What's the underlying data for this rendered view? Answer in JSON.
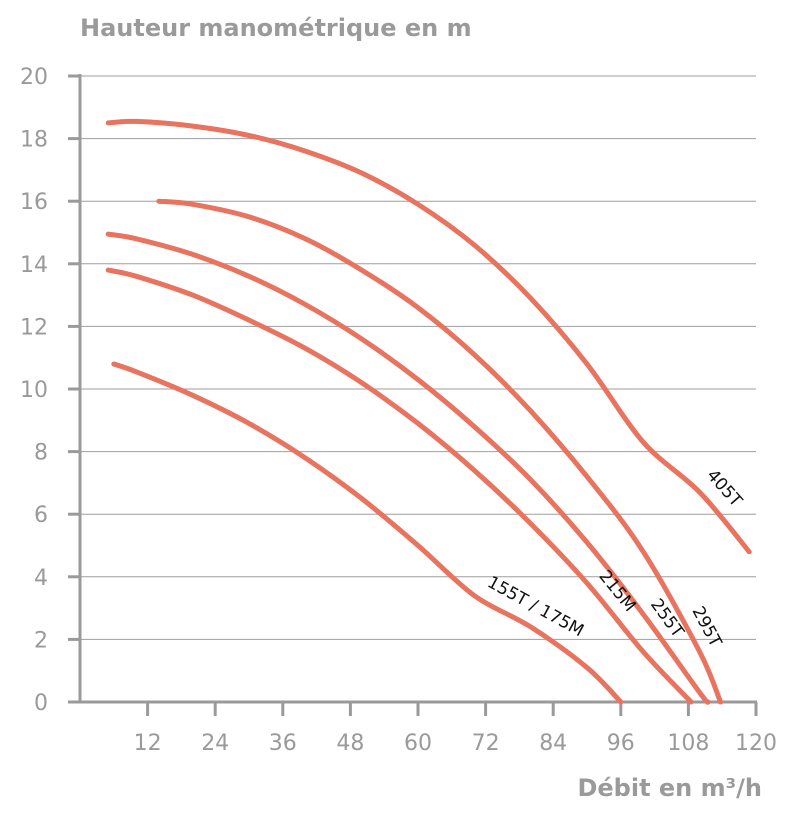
{
  "chart_data": {
    "type": "line",
    "title": "",
    "ylabel": "Hauteur manométrique en m",
    "xlabel": "Débit en m³/h",
    "xlim": [
      0,
      120
    ],
    "ylim": [
      0,
      20
    ],
    "xticks": [
      12,
      24,
      36,
      48,
      60,
      72,
      84,
      96,
      108,
      120
    ],
    "yticks": [
      0,
      2,
      4,
      6,
      8,
      10,
      12,
      14,
      16,
      18,
      20
    ],
    "grid": "horizontal",
    "colors": {
      "curve": "#e8735e",
      "grid": "#9e9e9e",
      "axis": "#9a9a9a",
      "label": "#111111"
    },
    "series": [
      {
        "name": "405T",
        "x": [
          5,
          10,
          20,
          30,
          40,
          50,
          60,
          70,
          80,
          90,
          100,
          110,
          118.8
        ],
        "y": [
          18.5,
          18.55,
          18.4,
          18.1,
          17.6,
          16.9,
          15.9,
          14.6,
          12.9,
          10.8,
          8.3,
          6.7,
          4.8
        ]
      },
      {
        "name": "295T",
        "x": [
          14,
          20,
          30,
          40,
          50,
          60,
          70,
          80,
          90,
          100,
          110,
          113.7
        ],
        "y": [
          16.0,
          15.9,
          15.5,
          14.8,
          13.8,
          12.6,
          11.1,
          9.3,
          7.2,
          4.8,
          1.6,
          0
        ]
      },
      {
        "name": "255T",
        "x": [
          5,
          10,
          20,
          30,
          40,
          50,
          60,
          70,
          80,
          90,
          100,
          110,
          111.5
        ],
        "y": [
          14.95,
          14.8,
          14.3,
          13.6,
          12.7,
          11.6,
          10.3,
          8.8,
          7.1,
          5.1,
          2.8,
          0.3,
          0
        ]
      },
      {
        "name": "215M",
        "x": [
          5,
          10,
          20,
          30,
          40,
          50,
          60,
          70,
          80,
          90,
          100,
          108.5
        ],
        "y": [
          13.8,
          13.6,
          13.0,
          12.2,
          11.3,
          10.2,
          8.9,
          7.4,
          5.7,
          3.8,
          1.6,
          0
        ]
      },
      {
        "name": "155T / 175M",
        "x": [
          6,
          10,
          20,
          30,
          40,
          50,
          60,
          70,
          80,
          90,
          96
        ],
        "y": [
          10.8,
          10.55,
          9.8,
          8.9,
          7.8,
          6.5,
          5.0,
          3.4,
          2.4,
          1.1,
          0
        ]
      }
    ]
  }
}
